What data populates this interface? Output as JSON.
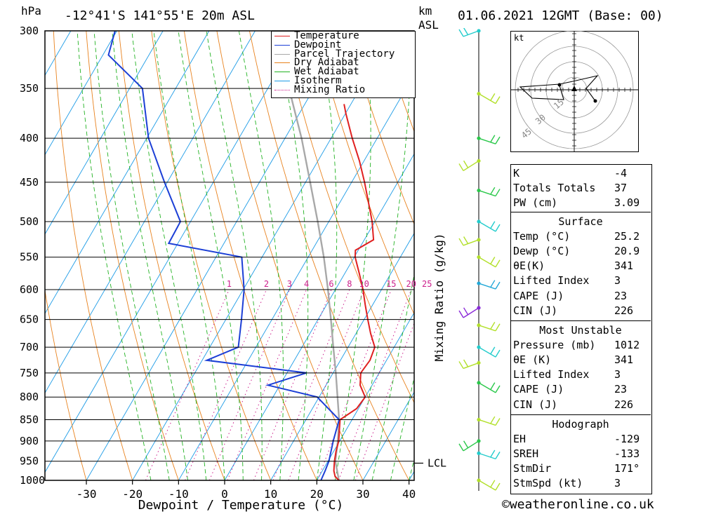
{
  "header": {
    "pressure_unit": "hPa",
    "location": "-12°41'S  141°55'E  20m  ASL",
    "km_label": "km",
    "asl_label": "ASL",
    "datetime": "01.06.2021  12GMT  (Base: 00)"
  },
  "chart_data": {
    "type": "line",
    "xlabel": "Dewpoint / Temperature (°C)",
    "ylabel": "hPa",
    "secondary_ylabel": "Mixing Ratio (g/kg)",
    "x_ticks": [
      -30,
      -20,
      -10,
      0,
      10,
      20,
      30,
      40
    ],
    "pressure_levels": [
      300,
      350,
      400,
      450,
      500,
      550,
      600,
      650,
      700,
      750,
      800,
      850,
      900,
      950,
      1000
    ],
    "mixing_ratio_labels": [
      "1",
      "2",
      "3",
      "4",
      "6",
      "8",
      "10",
      "15",
      "20",
      "25"
    ],
    "mixing_ratio_values": [
      1,
      2,
      3,
      4,
      6,
      8,
      10,
      15,
      20,
      25
    ],
    "lcl_label": "LCL",
    "lcl_pressure": 955,
    "legend": [
      "Temperature",
      "Dewpoint",
      "Parcel Trajectory",
      "Dry Adiabat",
      "Wet Adiabat",
      "Isotherm",
      "Mixing Ratio"
    ],
    "colors": {
      "temperature": "#e02020",
      "dewpoint": "#1c3fd6",
      "parcel": "#a8a8a8",
      "dry_adiabat": "#e8821e",
      "wet_adiabat": "#22b222",
      "isotherm": "#1c9be6",
      "mixing_ratio": "#cc1f8c"
    },
    "series": [
      {
        "name": "Temperature",
        "points": [
          [
            1000,
            24.8
          ],
          [
            990,
            23.5
          ],
          [
            975,
            22.5
          ],
          [
            950,
            21.4
          ],
          [
            925,
            20.5
          ],
          [
            900,
            19.8
          ],
          [
            875,
            18.6
          ],
          [
            850,
            17.4
          ],
          [
            825,
            19.6
          ],
          [
            800,
            20.0
          ],
          [
            775,
            17.4
          ],
          [
            750,
            16.0
          ],
          [
            725,
            16.4
          ],
          [
            700,
            15.8
          ],
          [
            675,
            13.2
          ],
          [
            650,
            10.8
          ],
          [
            625,
            8.4
          ],
          [
            600,
            6.0
          ],
          [
            575,
            3.2
          ],
          [
            550,
            0.2
          ],
          [
            540,
            -0.6
          ],
          [
            525,
            2.0
          ],
          [
            500,
            -0.6
          ],
          [
            475,
            -3.8
          ],
          [
            450,
            -7.2
          ],
          [
            425,
            -11.0
          ],
          [
            400,
            -15.4
          ],
          [
            375,
            -19.8
          ],
          [
            365,
            -21.5
          ]
        ]
      },
      {
        "name": "Dewpoint",
        "points": [
          [
            1000,
            20.9
          ],
          [
            975,
            20.6
          ],
          [
            950,
            20.2
          ],
          [
            900,
            18.6
          ],
          [
            850,
            17.2
          ],
          [
            800,
            9.6
          ],
          [
            775,
            -2.6
          ],
          [
            750,
            4.2
          ],
          [
            725,
            -19.0
          ],
          [
            700,
            -13.8
          ],
          [
            650,
            -16.6
          ],
          [
            600,
            -19.8
          ],
          [
            550,
            -24.4
          ],
          [
            530,
            -42.0
          ],
          [
            500,
            -42.2
          ],
          [
            450,
            -50.6
          ],
          [
            400,
            -59.6
          ],
          [
            350,
            -67.2
          ],
          [
            320,
            -78.8
          ],
          [
            300,
            -80.4
          ]
        ]
      },
      {
        "name": "Parcel Trajectory",
        "points": [
          [
            1000,
            24.8
          ],
          [
            950,
            21.6
          ],
          [
            900,
            19.6
          ],
          [
            850,
            17.2
          ],
          [
            800,
            14.0
          ],
          [
            750,
            10.6
          ],
          [
            700,
            6.8
          ],
          [
            650,
            2.8
          ],
          [
            600,
            -1.6
          ],
          [
            550,
            -6.6
          ],
          [
            500,
            -12.4
          ],
          [
            450,
            -19.0
          ],
          [
            400,
            -26.4
          ],
          [
            350,
            -35.4
          ],
          [
            300,
            -45.6
          ]
        ]
      }
    ]
  },
  "winds": {
    "colors": [
      "#22cccc",
      "#b2e02a",
      "#2ac84a",
      "#b2e02a",
      "#2ac84a",
      "#22cccc",
      "#b2e02a",
      "#b2e02a",
      "#22a8d8",
      "#8a2ad8",
      "#b2e02a"
    ],
    "barb_levels": [
      300,
      355,
      400,
      425,
      460,
      500,
      525,
      550,
      590,
      630,
      660,
      700,
      730,
      770,
      850,
      900,
      930,
      1000
    ]
  },
  "hodograph": {
    "unit": "kt",
    "ring_labels": [
      "15",
      "30",
      "45"
    ]
  },
  "indices": {
    "general": [
      {
        "label": "K",
        "value": "-4"
      },
      {
        "label": "Totals Totals",
        "value": "37"
      },
      {
        "label": "PW (cm)",
        "value": "3.09"
      }
    ],
    "surface_title": "Surface",
    "surface": [
      {
        "label": "Temp (°C)",
        "value": "25.2"
      },
      {
        "label": "Dewp (°C)",
        "value": "20.9"
      },
      {
        "label": "θE(K)",
        "value": "341"
      },
      {
        "label": "Lifted Index",
        "value": "3"
      },
      {
        "label": "CAPE (J)",
        "value": "23"
      },
      {
        "label": "CIN (J)",
        "value": "226"
      }
    ],
    "mu_title": "Most Unstable",
    "most_unstable": [
      {
        "label": "Pressure (mb)",
        "value": "1012"
      },
      {
        "label": "θE (K)",
        "value": "341"
      },
      {
        "label": "Lifted Index",
        "value": "3"
      },
      {
        "label": "CAPE (J)",
        "value": "23"
      },
      {
        "label": "CIN (J)",
        "value": "226"
      }
    ],
    "hodo_title": "Hodograph",
    "hodo": [
      {
        "label": "EH",
        "value": "-129"
      },
      {
        "label": "SREH",
        "value": "-133"
      },
      {
        "label": "StmDir",
        "value": "171°"
      },
      {
        "label": "StmSpd (kt)",
        "value": "3"
      }
    ]
  },
  "footer": {
    "copyright": "©weatheronline.co.uk"
  }
}
